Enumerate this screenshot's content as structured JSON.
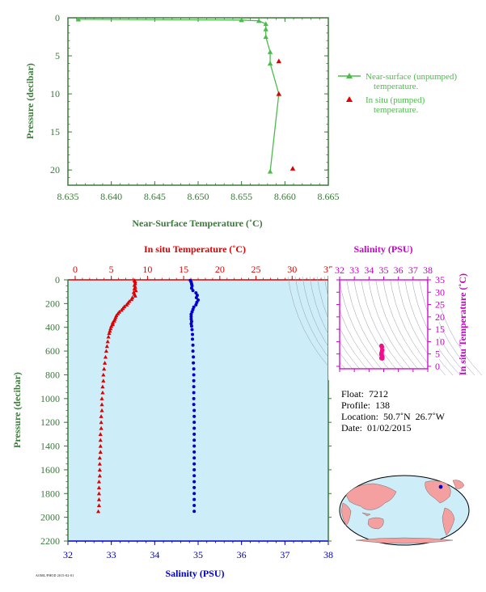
{
  "colors": {
    "axis_green": "#3a7a3a",
    "line_green": "#4cbb4c",
    "insitu_red": "#e00000",
    "salinity_blue": "#0000cc",
    "magenta": "#cc00cc",
    "panel_bg": "#cdeef8",
    "ts_line": "#9a9ab0",
    "ts_point": "#ee1188",
    "land": "#f4a0a0",
    "ocean": "#cdeef8"
  },
  "chart_data": [
    {
      "type": "line",
      "id": "near-surface",
      "xlabel": "Near-Surface Temperature (˚C)",
      "ylabel": "Pressure (decibar)",
      "xlim": [
        8.635,
        8.665
      ],
      "ylim": [
        0,
        22
      ],
      "xticks": [
        "8.635",
        "8.640",
        "8.645",
        "8.650",
        "8.655",
        "8.660",
        "8.665"
      ],
      "yticks": [
        "0",
        "5",
        "10",
        "15",
        "20"
      ],
      "series": [
        {
          "name": "Near-surface (unpumped) temperature.",
          "style": "line-triangle",
          "points": [
            [
              8.6362,
              0.2
            ],
            [
              8.655,
              0.3
            ],
            [
              8.657,
              0.4
            ],
            [
              8.6578,
              0.8
            ],
            [
              8.6578,
              1.5
            ],
            [
              8.6578,
              2.5
            ],
            [
              8.6583,
              4.5
            ],
            [
              8.6583,
              6.0
            ],
            [
              8.6593,
              10.0
            ],
            [
              8.6583,
              20.2
            ]
          ]
        },
        {
          "name": "In situ (pumped) temperature.",
          "style": "triangle",
          "points": [
            [
              8.6593,
              5.7
            ],
            [
              8.6593,
              10.0
            ],
            [
              8.6609,
              19.8
            ]
          ]
        }
      ],
      "legend": [
        {
          "line1": "Near-surface (unpumped)",
          "line2": "temperature."
        },
        {
          "line1": "In situ (pumped)",
          "line2": "temperature."
        }
      ]
    },
    {
      "type": "scatter",
      "id": "profile",
      "x_top_label": "In situ Temperature (˚C)",
      "x_bottom_label": "Salinity (PSU)",
      "ylabel": "Pressure (decibar)",
      "x_top_lim": [
        -1,
        35
      ],
      "x_bottom_lim": [
        32,
        38
      ],
      "ylim": [
        0,
        2200
      ],
      "x_top_ticks": [
        "0",
        "5",
        "10",
        "15",
        "20",
        "25",
        "30",
        "35"
      ],
      "x_bottom_ticks": [
        "32",
        "33",
        "34",
        "35",
        "36",
        "37",
        "38"
      ],
      "yticks": [
        "0",
        "200",
        "400",
        "600",
        "800",
        "1000",
        "1200",
        "1400",
        "1600",
        "1800",
        "2000",
        "2200"
      ],
      "temperature": {
        "p": [
          5,
          15,
          30,
          45,
          60,
          75,
          90,
          105,
          120,
          135,
          150,
          165,
          180,
          195,
          210,
          225,
          240,
          255,
          270,
          285,
          300,
          315,
          330,
          345,
          360,
          375,
          390,
          410,
          430,
          450,
          480,
          520,
          560,
          600,
          650,
          700,
          750,
          800,
          850,
          900,
          950,
          1000,
          1050,
          1100,
          1150,
          1200,
          1250,
          1300,
          1350,
          1400,
          1450,
          1500,
          1550,
          1600,
          1650,
          1700,
          1750,
          1800,
          1850,
          1900,
          1950
        ],
        "t": [
          8.2,
          8.3,
          8.3,
          8.2,
          8.3,
          8.2,
          8.4,
          8.1,
          8.2,
          8.3,
          7.9,
          7.8,
          7.5,
          7.3,
          7.1,
          6.8,
          6.6,
          6.4,
          6.1,
          5.9,
          5.7,
          5.6,
          5.5,
          5.4,
          5.2,
          5.2,
          5.0,
          4.9,
          4.8,
          4.7,
          4.6,
          4.5,
          4.4,
          4.3,
          4.2,
          4.1,
          4.0,
          3.9,
          3.9,
          3.8,
          3.8,
          3.7,
          3.7,
          3.7,
          3.6,
          3.6,
          3.6,
          3.5,
          3.5,
          3.5,
          3.5,
          3.4,
          3.4,
          3.4,
          3.4,
          3.3,
          3.3,
          3.3,
          3.3,
          3.3,
          3.2
        ]
      },
      "salinity": {
        "p": [
          5,
          20,
          35,
          50,
          70,
          90,
          110,
          130,
          150,
          170,
          190,
          210,
          230,
          250,
          270,
          290,
          310,
          330,
          350,
          370,
          390,
          420,
          460,
          500,
          550,
          600,
          650,
          700,
          750,
          800,
          850,
          900,
          950,
          1000,
          1050,
          1100,
          1150,
          1200,
          1250,
          1300,
          1350,
          1400,
          1450,
          1500,
          1550,
          1600,
          1650,
          1700,
          1750,
          1800,
          1850,
          1900,
          1950
        ],
        "s": [
          34.82,
          34.84,
          34.85,
          34.86,
          34.85,
          34.88,
          34.95,
          34.98,
          34.96,
          35.0,
          34.97,
          34.95,
          34.9,
          34.88,
          34.86,
          34.84,
          34.84,
          34.84,
          34.85,
          34.84,
          34.85,
          34.86,
          34.87,
          34.87,
          34.88,
          34.88,
          34.89,
          34.89,
          34.9,
          34.9,
          34.9,
          34.9,
          34.9,
          34.9,
          34.9,
          34.91,
          34.91,
          34.91,
          34.91,
          34.91,
          34.91,
          34.91,
          34.91,
          34.91,
          34.91,
          34.91,
          34.91,
          34.91,
          34.91,
          34.91,
          34.91,
          34.91,
          34.91
        ]
      }
    },
    {
      "type": "scatter",
      "id": "ts-diagram",
      "xlabel": "Salinity (PSU)",
      "ylabel": "In situ Temperature (˚C)",
      "xlim": [
        32,
        38
      ],
      "ylim": [
        -1,
        35
      ],
      "xticks": [
        "32",
        "33",
        "34",
        "35",
        "36",
        "37",
        "38"
      ],
      "yticks": [
        "0",
        "5",
        "10",
        "15",
        "20",
        "25",
        "30",
        "35"
      ],
      "points_s": [
        34.85,
        34.88,
        34.9,
        34.86,
        34.84,
        34.89,
        34.91,
        34.87,
        34.85,
        34.9
      ],
      "points_t": [
        8.3,
        7.8,
        6.5,
        5.5,
        4.8,
        4.2,
        3.8,
        3.5,
        3.3,
        3.2
      ]
    }
  ],
  "float_info": {
    "float": "Float:  7212",
    "profile": "Profile:  138",
    "location": "Location:  50.7˚N  26.7˚W",
    "date": "Date:  01/02/2015"
  },
  "footer": "AOML/PHOD 2015-02-01",
  "map": {
    "marker_lat": 50.7,
    "marker_lon": -26.7
  }
}
